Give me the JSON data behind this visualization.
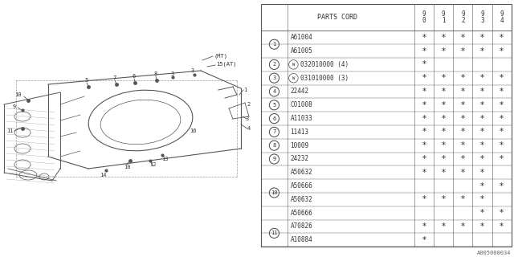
{
  "title": "PARTS CORD",
  "year_cols": [
    "9\n0",
    "9\n1",
    "9\n2",
    "9\n3",
    "9\n4"
  ],
  "rows": [
    {
      "ref": "1",
      "part": "A61004",
      "marks": [
        1,
        1,
        1,
        1,
        1
      ],
      "prefix": ""
    },
    {
      "ref": "1",
      "part": "A61005",
      "marks": [
        1,
        1,
        1,
        1,
        1
      ],
      "prefix": ""
    },
    {
      "ref": "2",
      "part": "032010000 (4)",
      "marks": [
        1,
        0,
        0,
        0,
        0
      ],
      "prefix": "W"
    },
    {
      "ref": "3",
      "part": "031010000 (3)",
      "marks": [
        1,
        1,
        1,
        1,
        1
      ],
      "prefix": "W"
    },
    {
      "ref": "4",
      "part": "22442",
      "marks": [
        1,
        1,
        1,
        1,
        1
      ],
      "prefix": ""
    },
    {
      "ref": "5",
      "part": "C01008",
      "marks": [
        1,
        1,
        1,
        1,
        1
      ],
      "prefix": ""
    },
    {
      "ref": "6",
      "part": "A11033",
      "marks": [
        1,
        1,
        1,
        1,
        1
      ],
      "prefix": ""
    },
    {
      "ref": "7",
      "part": "11413",
      "marks": [
        1,
        1,
        1,
        1,
        1
      ],
      "prefix": ""
    },
    {
      "ref": "8",
      "part": "10009",
      "marks": [
        1,
        1,
        1,
        1,
        1
      ],
      "prefix": ""
    },
    {
      "ref": "9",
      "part": "24232",
      "marks": [
        1,
        1,
        1,
        1,
        1
      ],
      "prefix": ""
    },
    {
      "ref": "10",
      "part": "A50632",
      "marks": [
        1,
        1,
        1,
        1,
        0
      ],
      "prefix": ""
    },
    {
      "ref": "10",
      "part": "A50666",
      "marks": [
        0,
        0,
        0,
        1,
        1
      ],
      "prefix": ""
    },
    {
      "ref": "10",
      "part": "A50632",
      "marks": [
        1,
        1,
        1,
        1,
        0
      ],
      "prefix": ""
    },
    {
      "ref": "10",
      "part": "A50666",
      "marks": [
        0,
        0,
        0,
        1,
        1
      ],
      "prefix": ""
    },
    {
      "ref": "11",
      "part": "A70826",
      "marks": [
        1,
        1,
        1,
        1,
        1
      ],
      "prefix": ""
    },
    {
      "ref": "11",
      "part": "A10884",
      "marks": [
        1,
        0,
        0,
        0,
        0
      ],
      "prefix": ""
    }
  ],
  "ref_groups": {
    "1": [
      0,
      1
    ],
    "2": [
      2
    ],
    "3": [
      3
    ],
    "4": [
      4
    ],
    "5": [
      5
    ],
    "6": [
      6
    ],
    "7": [
      7
    ],
    "8": [
      8
    ],
    "9": [
      9
    ],
    "10": [
      10,
      11,
      12,
      13
    ],
    "11": [
      14,
      15
    ]
  },
  "footnote": "A005000034",
  "ec": "#555555",
  "tc": "#333333"
}
